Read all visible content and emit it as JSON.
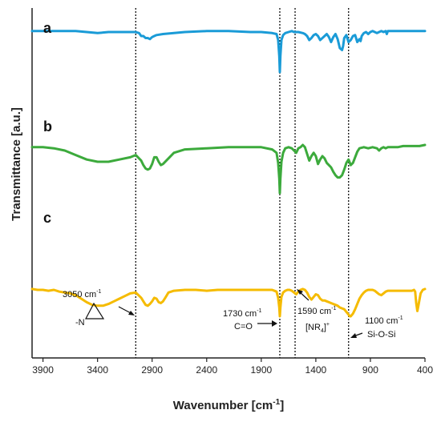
{
  "chart_data": {
    "type": "line",
    "xlabel_main": "Wavenumber [cm",
    "xlabel_sup": "-1",
    "xlabel_end": "]",
    "ylabel": "Transmittance [a.u.]",
    "x_reversed": true,
    "xlim": [
      4000,
      400
    ],
    "x_ticks": [
      3900,
      3400,
      2900,
      2400,
      1900,
      1400,
      900,
      400
    ],
    "y_ticks_shown": false,
    "grid": false,
    "colors": {
      "a": "#1a9bd7",
      "b": "#3caa3c",
      "c": "#f5bb00",
      "axis": "#222222"
    },
    "series": [
      {
        "name": "a",
        "x": [
          4000,
          3900,
          3800,
          3700,
          3600,
          3500,
          3400,
          3300,
          3200,
          3100,
          3050,
          3020,
          3000,
          2980,
          2960,
          2940,
          2920,
          2900,
          2880,
          2860,
          2800,
          2600,
          2400,
          2200,
          2000,
          1900,
          1800,
          1760,
          1745,
          1735,
          1730,
          1725,
          1715,
          1700,
          1680,
          1650,
          1620,
          1600,
          1560,
          1520,
          1500,
          1480,
          1460,
          1440,
          1420,
          1400,
          1380,
          1360,
          1340,
          1320,
          1300,
          1280,
          1260,
          1240,
          1220,
          1200,
          1180,
          1160,
          1150,
          1140,
          1120,
          1100,
          1080,
          1060,
          1040,
          1020,
          1000,
          990,
          980,
          960,
          940,
          920,
          900,
          880,
          860,
          840,
          820,
          800,
          780,
          760,
          750,
          740,
          700,
          650,
          600,
          550,
          500,
          450,
          400
        ],
        "y": [
          0.85,
          0.85,
          0.85,
          0.85,
          0.85,
          0.84,
          0.83,
          0.84,
          0.84,
          0.84,
          0.84,
          0.83,
          0.8,
          0.8,
          0.78,
          0.78,
          0.77,
          0.79,
          0.8,
          0.81,
          0.82,
          0.84,
          0.85,
          0.85,
          0.84,
          0.84,
          0.83,
          0.82,
          0.76,
          0.6,
          0.44,
          0.6,
          0.76,
          0.81,
          0.83,
          0.84,
          0.85,
          0.84,
          0.84,
          0.83,
          0.82,
          0.8,
          0.76,
          0.78,
          0.81,
          0.82,
          0.8,
          0.76,
          0.78,
          0.8,
          0.82,
          0.79,
          0.74,
          0.79,
          0.82,
          0.77,
          0.68,
          0.66,
          0.7,
          0.78,
          0.81,
          0.74,
          0.76,
          0.8,
          0.81,
          0.74,
          0.77,
          0.75,
          0.8,
          0.83,
          0.84,
          0.82,
          0.84,
          0.85,
          0.84,
          0.83,
          0.84,
          0.85,
          0.84,
          0.85,
          0.82,
          0.85,
          0.85,
          0.85,
          0.85,
          0.85,
          0.85,
          0.85,
          0.85
        ]
      },
      {
        "name": "b",
        "x": [
          4000,
          3900,
          3800,
          3700,
          3600,
          3500,
          3400,
          3300,
          3200,
          3100,
          3050,
          3000,
          2980,
          2960,
          2940,
          2920,
          2900,
          2880,
          2860,
          2840,
          2820,
          2800,
          2700,
          2600,
          2400,
          2200,
          2000,
          1900,
          1800,
          1760,
          1745,
          1735,
          1730,
          1725,
          1715,
          1700,
          1680,
          1650,
          1620,
          1600,
          1580,
          1560,
          1540,
          1520,
          1500,
          1480,
          1460,
          1440,
          1420,
          1400,
          1380,
          1360,
          1340,
          1320,
          1300,
          1280,
          1260,
          1240,
          1220,
          1200,
          1180,
          1160,
          1140,
          1120,
          1100,
          1080,
          1060,
          1040,
          1020,
          1000,
          960,
          920,
          880,
          840,
          820,
          800,
          780,
          760,
          740,
          700,
          650,
          600,
          550,
          500,
          450,
          400
        ],
        "y": [
          0.58,
          0.58,
          0.57,
          0.55,
          0.51,
          0.47,
          0.45,
          0.45,
          0.47,
          0.49,
          0.51,
          0.46,
          0.42,
          0.39,
          0.38,
          0.39,
          0.43,
          0.49,
          0.49,
          0.45,
          0.42,
          0.43,
          0.53,
          0.56,
          0.57,
          0.58,
          0.58,
          0.58,
          0.56,
          0.53,
          0.44,
          0.3,
          0.17,
          0.3,
          0.45,
          0.53,
          0.57,
          0.58,
          0.57,
          0.55,
          0.53,
          0.57,
          0.58,
          0.6,
          0.58,
          0.52,
          0.46,
          0.5,
          0.53,
          0.5,
          0.43,
          0.47,
          0.5,
          0.48,
          0.44,
          0.42,
          0.4,
          0.36,
          0.33,
          0.31,
          0.31,
          0.33,
          0.38,
          0.44,
          0.47,
          0.42,
          0.44,
          0.49,
          0.54,
          0.57,
          0.58,
          0.57,
          0.58,
          0.57,
          0.55,
          0.57,
          0.58,
          0.57,
          0.58,
          0.58,
          0.58,
          0.59,
          0.59,
          0.59,
          0.59,
          0.6
        ]
      },
      {
        "name": "c",
        "x": [
          4000,
          3950,
          3900,
          3850,
          3800,
          3750,
          3700,
          3650,
          3600,
          3550,
          3500,
          3450,
          3400,
          3350,
          3300,
          3250,
          3200,
          3150,
          3100,
          3050,
          3000,
          2980,
          2960,
          2940,
          2920,
          2900,
          2880,
          2860,
          2840,
          2820,
          2800,
          2780,
          2750,
          2700,
          2600,
          2500,
          2400,
          2300,
          2200,
          2000,
          1900,
          1800,
          1760,
          1745,
          1735,
          1730,
          1725,
          1715,
          1700,
          1680,
          1660,
          1640,
          1620,
          1600,
          1580,
          1560,
          1540,
          1520,
          1500,
          1480,
          1460,
          1440,
          1420,
          1400,
          1380,
          1360,
          1340,
          1320,
          1300,
          1280,
          1260,
          1240,
          1220,
          1200,
          1180,
          1160,
          1140,
          1120,
          1100,
          1090,
          1080,
          1060,
          1040,
          1020,
          1000,
          980,
          960,
          940,
          920,
          900,
          880,
          860,
          840,
          820,
          800,
          780,
          760,
          740,
          720,
          700,
          680,
          660,
          640,
          620,
          600,
          580,
          560,
          540,
          520,
          500,
          490,
          480,
          470,
          460,
          440,
          420,
          400
        ],
        "y": [
          0.31,
          0.3,
          0.3,
          0.29,
          0.3,
          0.28,
          0.27,
          0.26,
          0.24,
          0.2,
          0.16,
          0.13,
          0.12,
          0.12,
          0.14,
          0.17,
          0.2,
          0.23,
          0.26,
          0.27,
          0.21,
          0.17,
          0.13,
          0.12,
          0.14,
          0.17,
          0.21,
          0.2,
          0.16,
          0.15,
          0.17,
          0.21,
          0.27,
          0.29,
          0.3,
          0.3,
          0.29,
          0.3,
          0.3,
          0.3,
          0.3,
          0.3,
          0.28,
          0.21,
          0.1,
          0.0,
          0.1,
          0.22,
          0.27,
          0.29,
          0.3,
          0.3,
          0.29,
          0.27,
          0.25,
          0.28,
          0.3,
          0.31,
          0.3,
          0.27,
          0.22,
          0.19,
          0.22,
          0.25,
          0.24,
          0.2,
          0.18,
          0.18,
          0.17,
          0.16,
          0.15,
          0.14,
          0.13,
          0.12,
          0.1,
          0.09,
          0.08,
          0.05,
          0.02,
          0.0,
          0.0,
          0.03,
          0.08,
          0.14,
          0.2,
          0.24,
          0.27,
          0.29,
          0.3,
          0.3,
          0.3,
          0.29,
          0.27,
          0.25,
          0.24,
          0.26,
          0.28,
          0.29,
          0.29,
          0.29,
          0.29,
          0.29,
          0.29,
          0.29,
          0.29,
          0.29,
          0.29,
          0.29,
          0.29,
          0.3,
          0.28,
          0.15,
          0.06,
          0.12,
          0.26,
          0.3,
          0.31
        ]
      }
    ],
    "reference_lines": [
      3050,
      1730,
      1590,
      1100
    ],
    "annotations": [
      {
        "label": "3050 cm",
        "sup": "-1",
        "line2": "-N",
        "kind": "aziridine"
      },
      {
        "label": "1730 cm",
        "sup": "-1",
        "line2": "C=O"
      },
      {
        "label": "1590 cm",
        "sup": "-1",
        "line2_pre": "[NR",
        "line2_sub": "4",
        "line2_post": "]",
        "line2_sup": "+"
      },
      {
        "label": "1100 cm",
        "sup": "-1",
        "line2": "Si-O-Si"
      }
    ]
  }
}
